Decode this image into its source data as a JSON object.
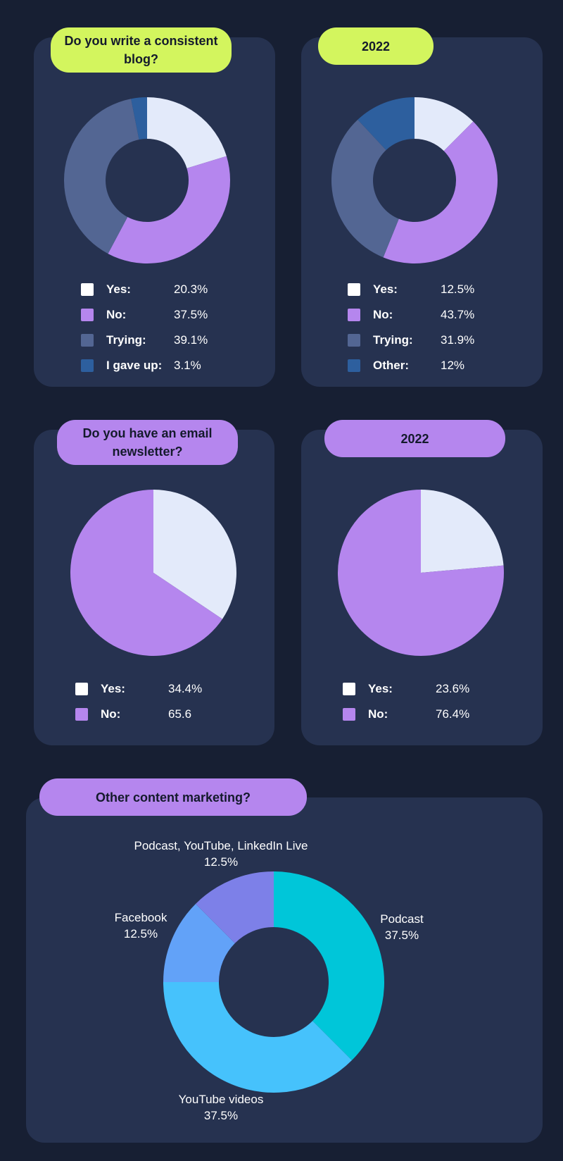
{
  "colors": {
    "background": "#171f33",
    "card": "#263250",
    "lime": "#d3f55e",
    "purple": "#b586ee",
    "white_swatch": "#ffffff"
  },
  "panels": {
    "blog": {
      "title": "Do you write a consistent blog?"
    },
    "blog_2022": {
      "title": "2022"
    },
    "newsletter": {
      "title": "Do you have an email newsletter?"
    },
    "newsletter_2022": {
      "title": "2022"
    },
    "other": {
      "title": "Other content marketing?"
    }
  },
  "chart_data": [
    {
      "type": "pie",
      "donut": true,
      "title": "Do you write a consistent blog?",
      "legend_position": "bottom",
      "slices": [
        {
          "label": "Yes:",
          "value": 20.3,
          "display": "20.3%",
          "color": "#e3eafa",
          "swatch": "#ffffff"
        },
        {
          "label": "No:",
          "value": 37.5,
          "display": "37.5%",
          "color": "#b586ee",
          "swatch": "#b586ee"
        },
        {
          "label": "Trying:",
          "value": 39.1,
          "display": "39.1%",
          "color": "#536693",
          "swatch": "#536693"
        },
        {
          "label": "I gave up:",
          "value": 3.1,
          "display": "3.1%",
          "color": "#2d5f9e",
          "swatch": "#2d5f9e"
        }
      ]
    },
    {
      "type": "pie",
      "donut": true,
      "title": "2022",
      "legend_position": "bottom",
      "slices": [
        {
          "label": "Yes:",
          "value": 12.5,
          "display": "12.5%",
          "color": "#e3eafa",
          "swatch": "#ffffff"
        },
        {
          "label": "No:",
          "value": 43.7,
          "display": "43.7%",
          "color": "#b586ee",
          "swatch": "#b586ee"
        },
        {
          "label": "Trying:",
          "value": 31.9,
          "display": "31.9%",
          "color": "#536693",
          "swatch": "#536693"
        },
        {
          "label": "Other:",
          "value": 12,
          "display": "12%",
          "color": "#2d5f9e",
          "swatch": "#2d5f9e"
        }
      ]
    },
    {
      "type": "pie",
      "donut": false,
      "title": "Do you have an email newsletter?",
      "legend_position": "bottom",
      "slices": [
        {
          "label": "Yes:",
          "value": 34.4,
          "display": "34.4%",
          "color": "#e3eafa",
          "swatch": "#ffffff"
        },
        {
          "label": "No:",
          "value": 65.6,
          "display": "65.6",
          "color": "#b586ee",
          "swatch": "#b586ee"
        }
      ]
    },
    {
      "type": "pie",
      "donut": false,
      "title": "2022",
      "legend_position": "bottom",
      "slices": [
        {
          "label": "Yes:",
          "value": 23.6,
          "display": "23.6%",
          "color": "#e3eafa",
          "swatch": "#ffffff"
        },
        {
          "label": "No:",
          "value": 76.4,
          "display": "76.4%",
          "color": "#b586ee",
          "swatch": "#b586ee"
        }
      ]
    },
    {
      "type": "pie",
      "donut": true,
      "title": "Other content marketing?",
      "labels_outside": true,
      "slices": [
        {
          "label": "Podcast",
          "value": 37.5,
          "display": "37.5%",
          "color": "#00c6d9"
        },
        {
          "label": "YouTube videos",
          "value": 37.5,
          "display": "37.5%",
          "color": "#46c2fc"
        },
        {
          "label": "Facebook",
          "value": 12.5,
          "display": "12.5%",
          "color": "#62a2f8"
        },
        {
          "label": "Podcast, YouTube, LinkedIn Live",
          "value": 12.5,
          "display": "12.5%",
          "color": "#7d80e8"
        }
      ]
    }
  ]
}
